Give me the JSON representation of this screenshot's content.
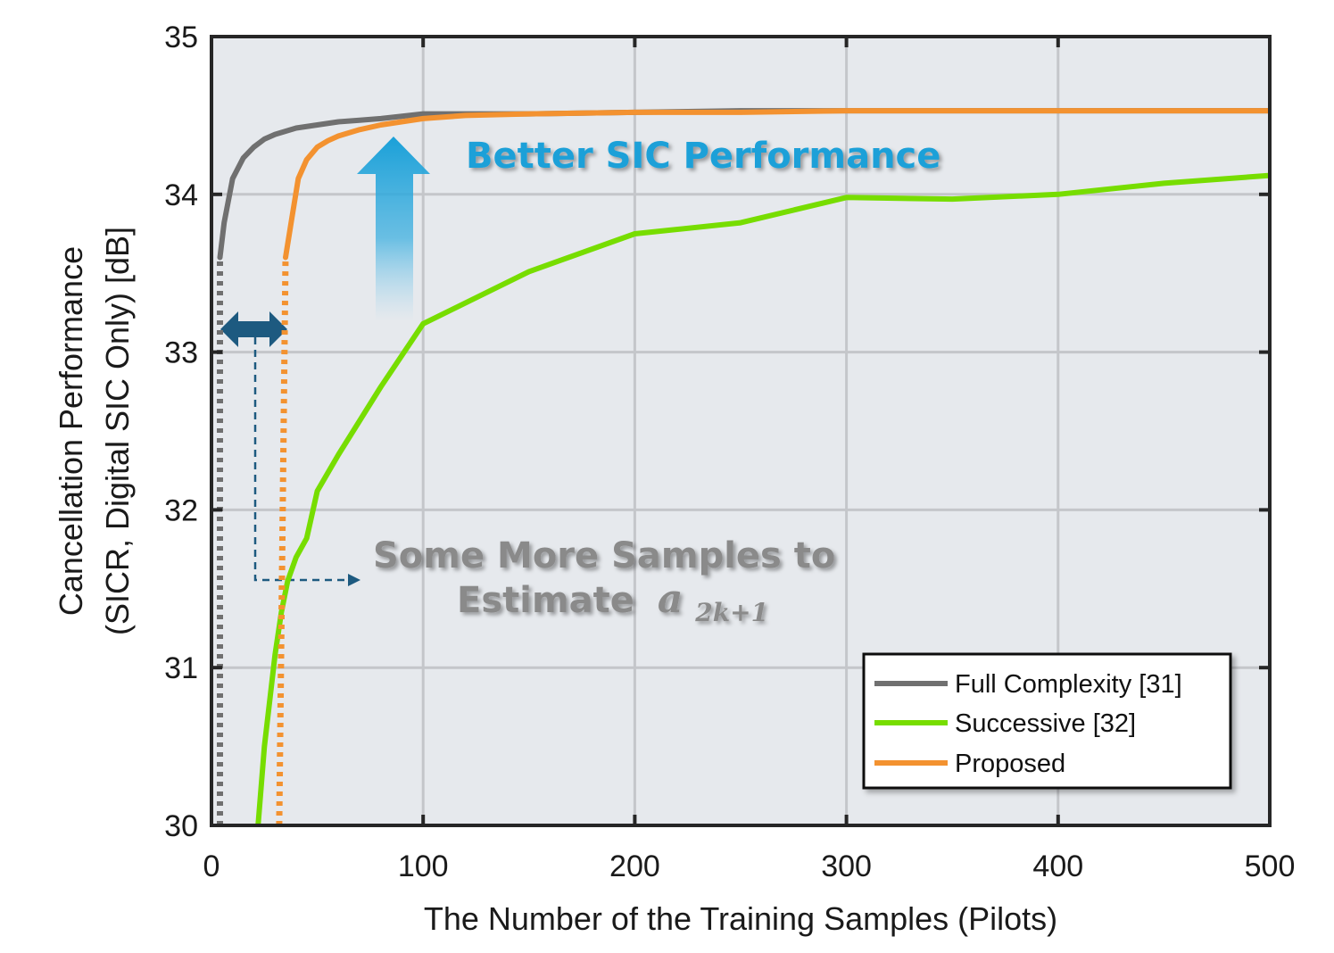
{
  "chart_data": {
    "type": "line",
    "xlabel": "The Number of the Training Samples (Pilots)",
    "ylabel_line1": "Cancellation Performance",
    "ylabel_line2": "(SICR, Digital SIC Only) [dB]",
    "xlim": [
      0,
      500
    ],
    "ylim": [
      30,
      35
    ],
    "xticks": [
      0,
      100,
      200,
      300,
      400,
      500
    ],
    "yticks": [
      30,
      31,
      32,
      33,
      34,
      35
    ],
    "grid": true,
    "legend_position": "bottom-right",
    "colors": {
      "full": "#707070",
      "successive": "#77dd00",
      "proposed": "#f39230",
      "plot_bg": "#e6e9ed",
      "grid": "#c4c6ca",
      "arrow_blue": "#1aa0d8",
      "arrow_dark": "#1d5a80"
    },
    "series": [
      {
        "name": "Full Complexity [31]",
        "key": "full",
        "dotted_start": [
          [
            4,
            30.0
          ],
          [
            4,
            33.6
          ]
        ],
        "x": [
          4,
          6,
          10,
          15,
          20,
          25,
          30,
          40,
          50,
          60,
          70,
          80,
          100,
          150,
          200,
          250,
          300,
          350,
          400,
          450,
          500
        ],
        "y": [
          33.6,
          33.82,
          34.1,
          34.23,
          34.3,
          34.35,
          34.38,
          34.42,
          34.44,
          34.46,
          34.47,
          34.48,
          34.51,
          34.51,
          34.52,
          34.53,
          34.53,
          34.53,
          34.53,
          34.53,
          34.53
        ]
      },
      {
        "name": "Successive [32]",
        "key": "successive",
        "x": [
          22,
          25,
          30,
          33,
          36,
          40,
          45,
          50,
          60,
          80,
          100,
          150,
          200,
          250,
          300,
          350,
          400,
          450,
          500
        ],
        "y": [
          30.0,
          30.5,
          31.08,
          31.35,
          31.55,
          31.7,
          31.82,
          32.12,
          32.35,
          32.78,
          33.18,
          33.51,
          33.75,
          33.82,
          33.98,
          33.97,
          34.0,
          34.07,
          34.12
        ]
      },
      {
        "name": "Proposed",
        "key": "proposed",
        "dotted_start": [
          [
            32,
            30.0
          ],
          [
            35,
            33.6
          ]
        ],
        "x": [
          35,
          38,
          41,
          45,
          50,
          55,
          60,
          70,
          80,
          100,
          120,
          150,
          200,
          250,
          300,
          350,
          400,
          450,
          500
        ],
        "y": [
          33.6,
          33.85,
          34.1,
          34.22,
          34.3,
          34.34,
          34.37,
          34.41,
          34.44,
          34.48,
          34.5,
          34.51,
          34.52,
          34.52,
          34.53,
          34.53,
          34.53,
          34.53,
          34.53
        ]
      }
    ],
    "annotations": {
      "better": "Better SIC Performance",
      "some_more_line1": "Some More Samples to",
      "some_more_line2": "Estimate",
      "coef_symbol": "a",
      "coef_subscript": "2k+1"
    }
  }
}
